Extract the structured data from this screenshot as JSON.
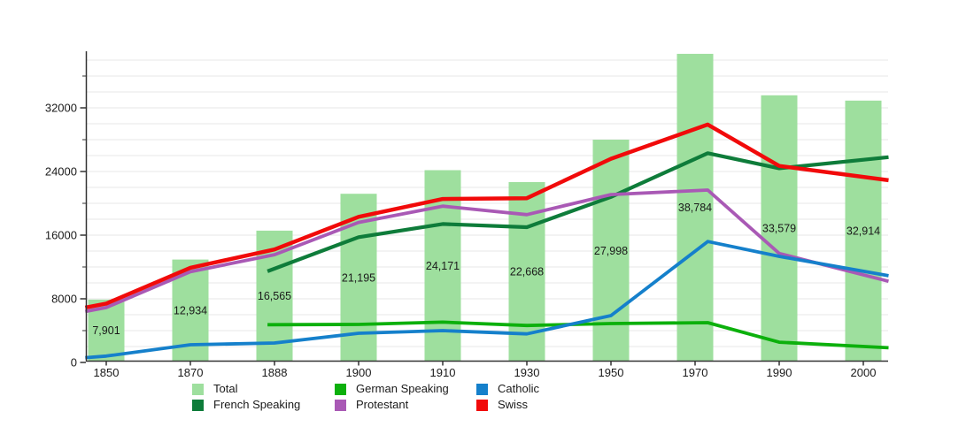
{
  "chart_data": {
    "type": "bar+line",
    "title": "",
    "categories": [
      1850,
      1870,
      1888,
      1900,
      1910,
      1930,
      1950,
      1970,
      1990,
      2000
    ],
    "x_axis": {
      "tick_labels": [
        "1850",
        "1870",
        "1888",
        "1900",
        "1910",
        "1930",
        "1950",
        "1970",
        "1990",
        "2000"
      ]
    },
    "y_axis": {
      "major_ticks": [
        0,
        8000,
        16000,
        24000,
        32000
      ],
      "major_tick_labels": [
        "0",
        "8000",
        "16000",
        "24000",
        "32000"
      ],
      "minor_tick_step": 4000,
      "minor_tick_max": 36000,
      "grid_step": 2000,
      "grid_max": 38000,
      "ylim": [
        0,
        39000
      ],
      "grid_on": true
    },
    "bar_series": {
      "name": "Total",
      "color": "#9EDF9E",
      "values": [
        7901,
        12934,
        16565,
        21195,
        24171,
        22668,
        27998,
        38784,
        33579,
        32914
      ],
      "labels": [
        "7,901",
        "12,934",
        "16,565",
        "21,195",
        "24,171",
        "22,668",
        "27,998",
        "38,784",
        "33,579",
        "32,914"
      ]
    },
    "line_series": [
      {
        "name": "French Speaking",
        "color": "#0E7C3A",
        "width": 4.2,
        "points": [
          [
            1886.5,
            11450
          ],
          [
            1900,
            15750
          ],
          [
            1910,
            17400
          ],
          [
            1930,
            17000
          ],
          [
            1950,
            20800
          ],
          [
            1973,
            26300
          ],
          [
            1990,
            24400
          ],
          [
            2003,
            25800
          ]
        ]
      },
      {
        "name": "German Speaking",
        "color": "#0CB00C",
        "width": 3.8,
        "points": [
          [
            1886.5,
            4750
          ],
          [
            1900,
            4780
          ],
          [
            1910,
            5070
          ],
          [
            1930,
            4640
          ],
          [
            1950,
            4890
          ],
          [
            1973,
            5000
          ],
          [
            1990,
            2550
          ],
          [
            2003,
            1850
          ]
        ]
      },
      {
        "name": "Protestant",
        "color": "#A959B5",
        "width": 3.8,
        "points": [
          [
            1845,
            6400
          ],
          [
            1850,
            6900
          ],
          [
            1870,
            11400
          ],
          [
            1888,
            13550
          ],
          [
            1900,
            17600
          ],
          [
            1910,
            19650
          ],
          [
            1930,
            18580
          ],
          [
            1950,
            21100
          ],
          [
            1973,
            21670
          ],
          [
            1990,
            13700
          ],
          [
            2003,
            10200
          ]
        ]
      },
      {
        "name": "Catholic",
        "color": "#1580CB",
        "width": 3.8,
        "points": [
          [
            1845,
            600
          ],
          [
            1850,
            800
          ],
          [
            1870,
            2220
          ],
          [
            1888,
            2440
          ],
          [
            1900,
            3670
          ],
          [
            1910,
            4000
          ],
          [
            1930,
            3590
          ],
          [
            1950,
            5890
          ],
          [
            1973,
            15200
          ],
          [
            1990,
            13330
          ],
          [
            2003,
            10900
          ]
        ]
      },
      {
        "name": "Swiss",
        "color": "#F10A0A",
        "width": 4.5,
        "points": [
          [
            1845,
            6900
          ],
          [
            1850,
            7400
          ],
          [
            1870,
            11900
          ],
          [
            1888,
            14200
          ],
          [
            1900,
            18300
          ],
          [
            1910,
            20550
          ],
          [
            1930,
            20650
          ],
          [
            1950,
            25600
          ],
          [
            1973,
            29900
          ],
          [
            1990,
            24700
          ],
          [
            2003,
            22900
          ]
        ]
      }
    ],
    "legend": {
      "position": "bottom",
      "entries": [
        {
          "label": "Total",
          "color": "#9EDF9E"
        },
        {
          "label": "French Speaking",
          "color": "#0E7C3A"
        },
        {
          "label": "German Speaking",
          "color": "#0CB00C"
        },
        {
          "label": "Protestant",
          "color": "#A959B5"
        },
        {
          "label": "Catholic",
          "color": "#1580CB"
        },
        {
          "label": "Swiss",
          "color": "#F10A0A"
        }
      ]
    },
    "colors": {
      "grid": "#E7E7E7",
      "axis": "#333333",
      "text": "#1A1A1A",
      "background": "#FFFFFF"
    }
  }
}
